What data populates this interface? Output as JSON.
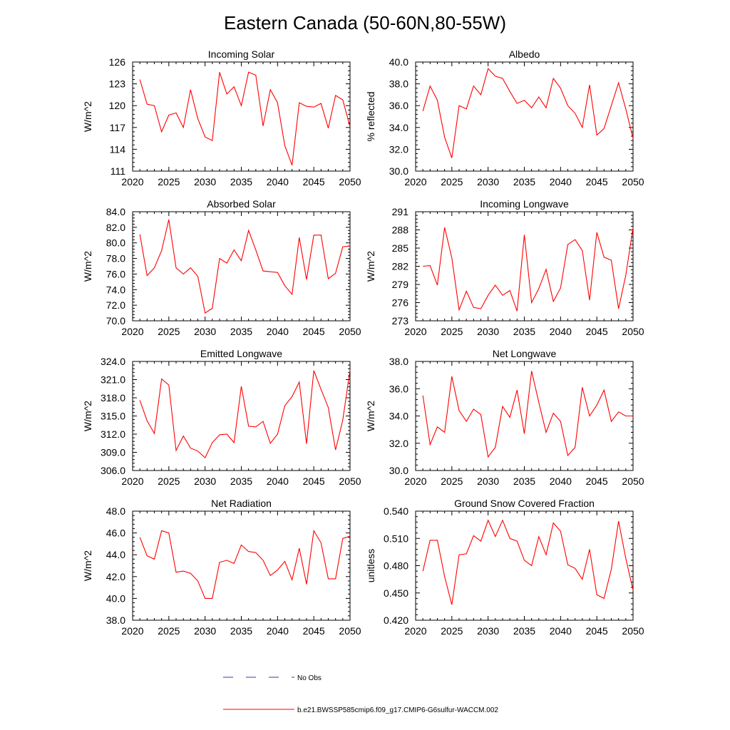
{
  "figure": {
    "title": "Eastern Canada (50-60N,80-55W)"
  },
  "legend": {
    "obs_label": "No Obs",
    "obs_color": "#3a3aa0",
    "model_label": "b.e21.BWSSP585cmip6.f09_g17.CMIP6-G6sulfur-WACCM.002",
    "model_color": "#ff0000"
  },
  "chart_data": [
    {
      "type": "line",
      "title": "Incoming Solar",
      "ylabel": "W/m^2",
      "xlim": [
        2020,
        2050
      ],
      "ylim": [
        111,
        126
      ],
      "xticks": [
        2020,
        2025,
        2030,
        2035,
        2040,
        2045,
        2050
      ],
      "yticks": [
        "111",
        "114",
        "117",
        "120",
        "123",
        "126"
      ],
      "x": [
        2021,
        2022,
        2023,
        2024,
        2025,
        2026,
        2027,
        2028,
        2029,
        2030,
        2031,
        2032,
        2033,
        2034,
        2035,
        2036,
        2037,
        2038,
        2039,
        2040,
        2041,
        2042,
        2043,
        2044,
        2045,
        2046,
        2047,
        2048,
        2049,
        2050
      ],
      "series": [
        {
          "values": [
            123.6,
            120.2,
            120.0,
            116.4,
            118.7,
            119.0,
            117.0,
            122.2,
            118.2,
            115.7,
            115.2,
            124.6,
            121.6,
            122.6,
            120.0,
            124.6,
            124.2,
            117.2,
            122.2,
            120.4,
            114.5,
            111.8,
            120.4,
            119.9,
            119.8,
            120.3,
            116.9,
            121.4,
            120.8,
            117.1
          ],
          "color": "#ff0000"
        }
      ]
    },
    {
      "type": "line",
      "title": "Albedo",
      "ylabel": "% reflected",
      "xlim": [
        2020,
        2050
      ],
      "ylim": [
        30,
        40
      ],
      "xticks": [
        2020,
        2025,
        2030,
        2035,
        2040,
        2045,
        2050
      ],
      "yticks": [
        "30.0",
        "32.0",
        "34.0",
        "36.0",
        "38.0",
        "40.0"
      ],
      "x": [
        2021,
        2022,
        2023,
        2024,
        2025,
        2026,
        2027,
        2028,
        2029,
        2030,
        2031,
        2032,
        2033,
        2034,
        2035,
        2036,
        2037,
        2038,
        2039,
        2040,
        2041,
        2042,
        2043,
        2044,
        2045,
        2046,
        2047,
        2048,
        2049,
        2050
      ],
      "series": [
        {
          "values": [
            35.5,
            37.8,
            36.5,
            33.1,
            31.2,
            36.0,
            35.7,
            37.8,
            37.0,
            39.4,
            38.7,
            38.5,
            37.3,
            36.2,
            36.5,
            35.8,
            36.8,
            35.8,
            38.5,
            37.6,
            36.0,
            35.3,
            34.0,
            37.9,
            33.3,
            33.9,
            36.0,
            38.1,
            35.7,
            33.0
          ],
          "color": "#ff0000"
        }
      ]
    },
    {
      "type": "line",
      "title": "Absorbed Solar",
      "ylabel": "W/m^2",
      "xlim": [
        2020,
        2050
      ],
      "ylim": [
        70,
        84
      ],
      "xticks": [
        2020,
        2025,
        2030,
        2035,
        2040,
        2045,
        2050
      ],
      "yticks": [
        "70.0",
        "72.0",
        "74.0",
        "76.0",
        "78.0",
        "80.0",
        "82.0",
        "84.0"
      ],
      "x": [
        2021,
        2022,
        2023,
        2024,
        2025,
        2026,
        2027,
        2028,
        2029,
        2030,
        2031,
        2032,
        2033,
        2034,
        2035,
        2036,
        2037,
        2038,
        2039,
        2040,
        2041,
        2042,
        2043,
        2044,
        2045,
        2046,
        2047,
        2048,
        2049,
        2050
      ],
      "series": [
        {
          "values": [
            81.1,
            75.8,
            76.8,
            79.0,
            83.0,
            76.8,
            76.0,
            76.8,
            75.7,
            71.0,
            71.6,
            78.0,
            77.4,
            79.1,
            77.7,
            81.6,
            79.1,
            76.4,
            76.3,
            76.2,
            74.5,
            73.4,
            80.7,
            75.3,
            81.0,
            81.0,
            75.4,
            76.1,
            79.5,
            79.6
          ],
          "color": "#ff0000"
        }
      ]
    },
    {
      "type": "line",
      "title": "Incoming Longwave",
      "ylabel": "W/m^2",
      "xlim": [
        2020,
        2050
      ],
      "ylim": [
        273,
        291
      ],
      "xticks": [
        2020,
        2025,
        2030,
        2035,
        2040,
        2045,
        2050
      ],
      "yticks": [
        "273",
        "276",
        "279",
        "282",
        "285",
        "288",
        "291"
      ],
      "x": [
        2021,
        2022,
        2023,
        2024,
        2025,
        2026,
        2027,
        2028,
        2029,
        2030,
        2031,
        2032,
        2033,
        2034,
        2035,
        2036,
        2037,
        2038,
        2039,
        2040,
        2041,
        2042,
        2043,
        2044,
        2045,
        2046,
        2047,
        2048,
        2049,
        2050
      ],
      "series": [
        {
          "values": [
            282.0,
            282.1,
            278.9,
            288.4,
            283.4,
            274.8,
            277.9,
            275.2,
            275.0,
            277.2,
            278.9,
            277.2,
            278.0,
            274.6,
            287.2,
            276.0,
            278.3,
            281.5,
            276.2,
            278.4,
            285.6,
            286.4,
            284.6,
            276.4,
            287.6,
            283.5,
            283.0,
            275.0,
            280.5,
            288.4
          ],
          "color": "#ff0000"
        }
      ]
    },
    {
      "type": "line",
      "title": "Emitted Longwave",
      "ylabel": "W/m^2",
      "xlim": [
        2020,
        2050
      ],
      "ylim": [
        306,
        324
      ],
      "xticks": [
        2020,
        2025,
        2030,
        2035,
        2040,
        2045,
        2050
      ],
      "yticks": [
        "306.0",
        "309.0",
        "312.0",
        "315.0",
        "318.0",
        "321.0",
        "324.0"
      ],
      "x": [
        2021,
        2022,
        2023,
        2024,
        2025,
        2026,
        2027,
        2028,
        2029,
        2030,
        2031,
        2032,
        2033,
        2034,
        2035,
        2036,
        2037,
        2038,
        2039,
        2040,
        2041,
        2042,
        2043,
        2044,
        2045,
        2046,
        2047,
        2048,
        2049,
        2050
      ],
      "series": [
        {
          "values": [
            317.6,
            314.2,
            312.1,
            321.1,
            320.1,
            309.3,
            311.7,
            309.7,
            309.2,
            308.1,
            310.6,
            311.9,
            312.0,
            310.6,
            319.9,
            313.3,
            313.2,
            314.1,
            310.5,
            312.0,
            316.7,
            318.2,
            320.6,
            310.4,
            322.5,
            319.4,
            316.4,
            309.4,
            314.3,
            322.6
          ],
          "color": "#ff0000"
        }
      ]
    },
    {
      "type": "line",
      "title": "Net Longwave",
      "ylabel": "W/m^2",
      "xlim": [
        2020,
        2050
      ],
      "ylim": [
        30,
        38
      ],
      "xticks": [
        2020,
        2025,
        2030,
        2035,
        2040,
        2045,
        2050
      ],
      "yticks": [
        "30.0",
        "32.0",
        "34.0",
        "36.0",
        "38.0"
      ],
      "x": [
        2021,
        2022,
        2023,
        2024,
        2025,
        2026,
        2027,
        2028,
        2029,
        2030,
        2031,
        2032,
        2033,
        2034,
        2035,
        2036,
        2037,
        2038,
        2039,
        2040,
        2041,
        2042,
        2043,
        2044,
        2045,
        2046,
        2047,
        2048,
        2049,
        2050
      ],
      "series": [
        {
          "values": [
            35.5,
            31.9,
            33.2,
            32.8,
            36.9,
            34.4,
            33.6,
            34.5,
            34.1,
            31.0,
            31.7,
            34.7,
            33.9,
            35.9,
            32.7,
            37.3,
            35.0,
            32.8,
            34.2,
            33.6,
            31.1,
            31.7,
            36.1,
            34.0,
            34.8,
            35.9,
            33.6,
            34.3,
            34.0,
            34.0
          ],
          "color": "#ff0000"
        }
      ]
    },
    {
      "type": "line",
      "title": "Net Radiation",
      "ylabel": "W/m^2",
      "xlim": [
        2020,
        2050
      ],
      "ylim": [
        38,
        48
      ],
      "xticks": [
        2020,
        2025,
        2030,
        2035,
        2040,
        2045,
        2050
      ],
      "yticks": [
        "38.0",
        "40.0",
        "42.0",
        "44.0",
        "46.0",
        "48.0"
      ],
      "x": [
        2021,
        2022,
        2023,
        2024,
        2025,
        2026,
        2027,
        2028,
        2029,
        2030,
        2031,
        2032,
        2033,
        2034,
        2035,
        2036,
        2037,
        2038,
        2039,
        2040,
        2041,
        2042,
        2043,
        2044,
        2045,
        2046,
        2047,
        2048,
        2049,
        2050
      ],
      "series": [
        {
          "values": [
            45.6,
            43.9,
            43.6,
            46.2,
            46.0,
            42.4,
            42.5,
            42.3,
            41.6,
            40.0,
            40.0,
            43.3,
            43.5,
            43.2,
            44.9,
            44.3,
            44.2,
            43.5,
            42.1,
            42.6,
            43.4,
            41.7,
            44.6,
            41.3,
            46.2,
            45.1,
            41.8,
            41.8,
            45.5,
            45.7
          ],
          "color": "#ff0000"
        }
      ]
    },
    {
      "type": "line",
      "title": "Ground Snow Covered Fraction",
      "ylabel": "unitless",
      "xlim": [
        2020,
        2050
      ],
      "ylim": [
        0.42,
        0.54
      ],
      "xticks": [
        2020,
        2025,
        2030,
        2035,
        2040,
        2045,
        2050
      ],
      "yticks": [
        "0.420",
        "0.450",
        "0.480",
        "0.510",
        "0.540"
      ],
      "x": [
        2021,
        2022,
        2023,
        2024,
        2025,
        2026,
        2027,
        2028,
        2029,
        2030,
        2031,
        2032,
        2033,
        2034,
        2035,
        2036,
        2037,
        2038,
        2039,
        2040,
        2041,
        2042,
        2043,
        2044,
        2045,
        2046,
        2047,
        2048,
        2049,
        2050
      ],
      "series": [
        {
          "values": [
            0.474,
            0.508,
            0.508,
            0.468,
            0.437,
            0.492,
            0.493,
            0.513,
            0.507,
            0.53,
            0.512,
            0.53,
            0.51,
            0.507,
            0.486,
            0.48,
            0.512,
            0.492,
            0.527,
            0.518,
            0.481,
            0.477,
            0.465,
            0.498,
            0.448,
            0.444,
            0.476,
            0.529,
            0.488,
            0.453
          ],
          "color": "#ff0000"
        }
      ]
    }
  ]
}
